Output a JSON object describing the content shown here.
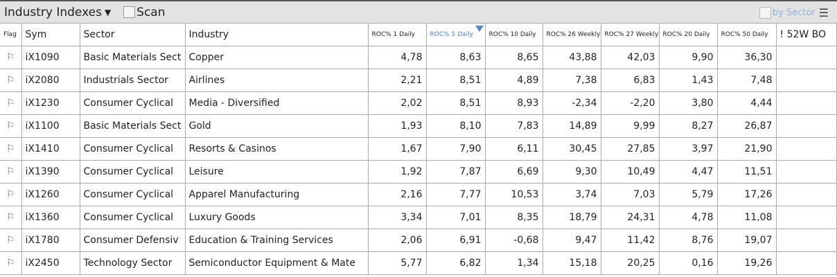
{
  "header": {
    "title": "Industry Indexes",
    "scan_label": "Scan",
    "by_sector_label": "by Sector",
    "menu_icon": "hamburger-icon",
    "accent": "#4a7fc1"
  },
  "columns": [
    "Flag",
    "Sym",
    "Sector",
    "Industry",
    "ROC% 1 Daily",
    "ROC% 5 Daily",
    "ROC% 10 Daily",
    "ROC% 26 Weekly",
    "ROC% 27 Weekly",
    "ROC% 20 Daily",
    "ROC% 50 Daily",
    "! 52W BO"
  ],
  "sorted_column": "ROC% 5 Daily",
  "rows": [
    [
      "iX1090",
      "Basic Materials Sect",
      "Copper",
      "4,78",
      "8,63",
      "8,65",
      "43,88",
      "42,03",
      "9,90",
      "36,30",
      ""
    ],
    [
      "iX2080",
      "Industrials Sector",
      "Airlines",
      "2,21",
      "8,51",
      "4,89",
      "7,38",
      "6,83",
      "1,43",
      "7,48",
      ""
    ],
    [
      "iX1230",
      "Consumer Cyclical",
      "Media - Diversified",
      "2,02",
      "8,51",
      "8,93",
      "-2,34",
      "-2,20",
      "3,80",
      "4,44",
      ""
    ],
    [
      "iX1100",
      "Basic Materials Sect",
      "Gold",
      "1,93",
      "8,10",
      "7,83",
      "14,89",
      "9,99",
      "8,27",
      "26,87",
      ""
    ],
    [
      "iX1410",
      "Consumer Cyclical",
      "Resorts & Casinos",
      "1,67",
      "7,90",
      "6,11",
      "30,45",
      "27,85",
      "3,97",
      "21,90",
      ""
    ],
    [
      "iX1390",
      "Consumer Cyclical",
      "Leisure",
      "1,92",
      "7,87",
      "6,69",
      "9,30",
      "10,49",
      "4,47",
      "11,51",
      ""
    ],
    [
      "iX1260",
      "Consumer Cyclical",
      "Apparel Manufacturing",
      "2,16",
      "7,77",
      "10,53",
      "3,74",
      "7,03",
      "5,79",
      "17,26",
      ""
    ],
    [
      "iX1360",
      "Consumer Cyclical",
      "Luxury Goods",
      "3,34",
      "7,01",
      "8,35",
      "18,79",
      "24,31",
      "4,78",
      "11,08",
      ""
    ],
    [
      "iX1780",
      "Consumer Defensiv",
      "Education & Training Services",
      "2,06",
      "6,91",
      "-0,68",
      "9,47",
      "11,42",
      "8,76",
      "19,07",
      ""
    ],
    [
      "iX2450",
      "Technology Sector",
      "Semiconductor Equipment & Mate",
      "5,77",
      "6,82",
      "1,34",
      "15,18",
      "20,25",
      "0,16",
      "19,26",
      ""
    ]
  ]
}
